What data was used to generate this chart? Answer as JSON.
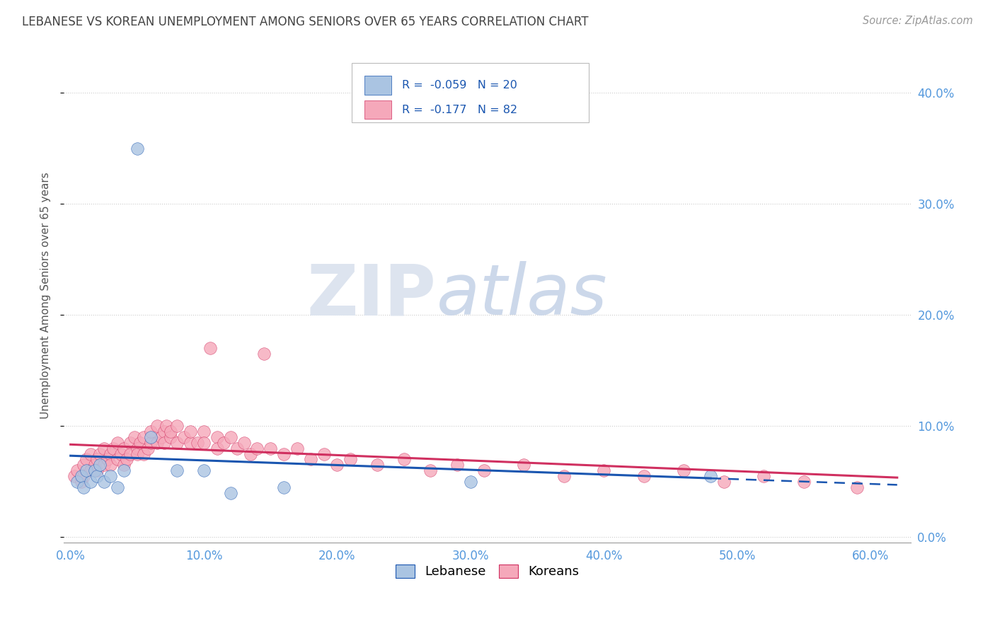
{
  "title": "LEBANESE VS KOREAN UNEMPLOYMENT AMONG SENIORS OVER 65 YEARS CORRELATION CHART",
  "source": "Source: ZipAtlas.com",
  "ylabel": "Unemployment Among Seniors over 65 years",
  "xlim": [
    -0.005,
    0.63
  ],
  "ylim": [
    -0.005,
    0.44
  ],
  "x_tick_vals": [
    0.0,
    0.1,
    0.2,
    0.3,
    0.4,
    0.5,
    0.6
  ],
  "y_tick_vals": [
    0.0,
    0.1,
    0.2,
    0.3,
    0.4
  ],
  "r_lebanese": -0.059,
  "n_lebanese": 20,
  "r_korean": -0.177,
  "n_korean": 82,
  "lebanese_color": "#aac4e2",
  "korean_color": "#f5a8ba",
  "trendline_lebanese_color": "#1a56b0",
  "trendline_korean_color": "#d03060",
  "tick_color": "#5599dd",
  "title_color": "#444444",
  "source_color": "#999999",
  "leb_x": [
    0.005,
    0.008,
    0.01,
    0.012,
    0.015,
    0.018,
    0.02,
    0.022,
    0.025,
    0.03,
    0.035,
    0.04,
    0.05,
    0.06,
    0.08,
    0.1,
    0.12,
    0.16,
    0.3,
    0.48
  ],
  "leb_y": [
    0.05,
    0.055,
    0.045,
    0.06,
    0.05,
    0.06,
    0.055,
    0.065,
    0.05,
    0.055,
    0.045,
    0.06,
    0.35,
    0.09,
    0.06,
    0.06,
    0.04,
    0.045,
    0.05,
    0.055
  ],
  "kor_x": [
    0.003,
    0.005,
    0.008,
    0.01,
    0.01,
    0.012,
    0.015,
    0.015,
    0.018,
    0.02,
    0.02,
    0.022,
    0.025,
    0.025,
    0.028,
    0.03,
    0.03,
    0.032,
    0.035,
    0.035,
    0.038,
    0.04,
    0.04,
    0.042,
    0.045,
    0.045,
    0.048,
    0.05,
    0.05,
    0.052,
    0.055,
    0.055,
    0.058,
    0.06,
    0.06,
    0.065,
    0.065,
    0.068,
    0.07,
    0.07,
    0.072,
    0.075,
    0.075,
    0.08,
    0.08,
    0.085,
    0.09,
    0.09,
    0.095,
    0.1,
    0.1,
    0.105,
    0.11,
    0.11,
    0.115,
    0.12,
    0.125,
    0.13,
    0.135,
    0.14,
    0.145,
    0.15,
    0.16,
    0.17,
    0.18,
    0.19,
    0.2,
    0.21,
    0.23,
    0.25,
    0.27,
    0.29,
    0.31,
    0.34,
    0.37,
    0.4,
    0.43,
    0.46,
    0.49,
    0.52,
    0.55,
    0.59
  ],
  "kor_y": [
    0.055,
    0.06,
    0.05,
    0.065,
    0.055,
    0.07,
    0.06,
    0.075,
    0.065,
    0.07,
    0.06,
    0.075,
    0.065,
    0.08,
    0.07,
    0.075,
    0.065,
    0.08,
    0.07,
    0.085,
    0.075,
    0.065,
    0.08,
    0.07,
    0.085,
    0.075,
    0.09,
    0.08,
    0.075,
    0.085,
    0.075,
    0.09,
    0.08,
    0.085,
    0.095,
    0.085,
    0.1,
    0.09,
    0.095,
    0.085,
    0.1,
    0.09,
    0.095,
    0.085,
    0.1,
    0.09,
    0.085,
    0.095,
    0.085,
    0.095,
    0.085,
    0.17,
    0.09,
    0.08,
    0.085,
    0.09,
    0.08,
    0.085,
    0.075,
    0.08,
    0.165,
    0.08,
    0.075,
    0.08,
    0.07,
    0.075,
    0.065,
    0.07,
    0.065,
    0.07,
    0.06,
    0.065,
    0.06,
    0.065,
    0.055,
    0.06,
    0.055,
    0.06,
    0.05,
    0.055,
    0.05,
    0.045
  ]
}
